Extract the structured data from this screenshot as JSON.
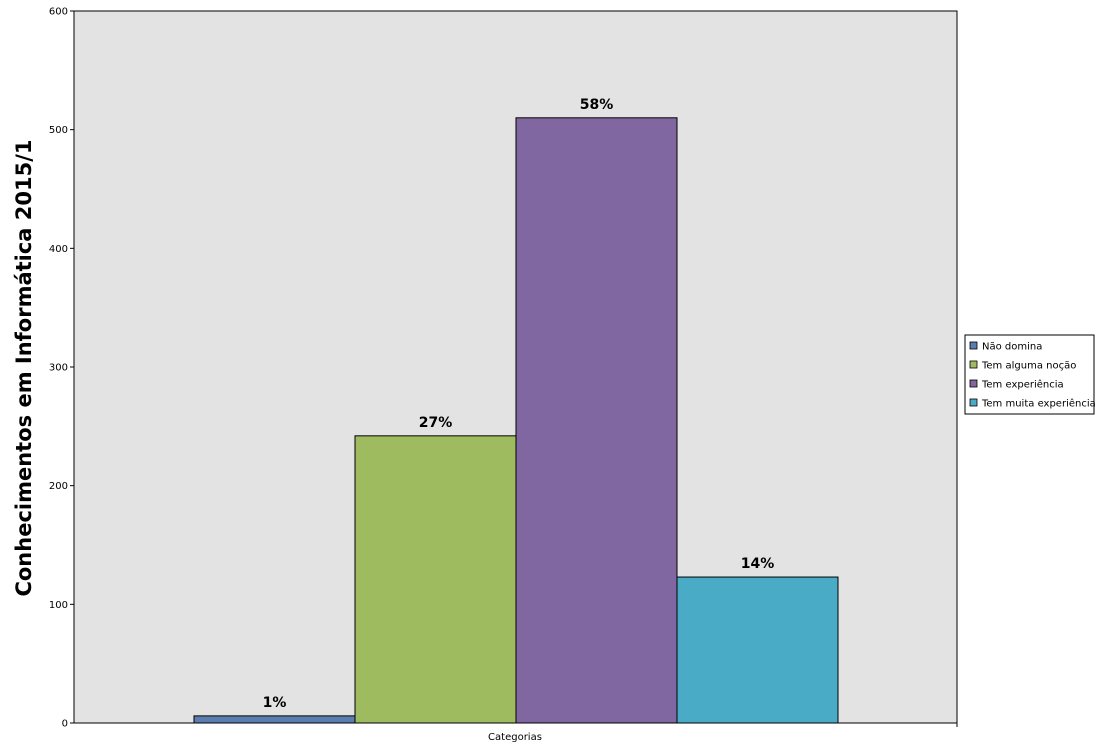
{
  "chart_data": {
    "type": "bar",
    "title": "",
    "xlabel": "Categorias",
    "ylabel": "Conhecimentos em Informática 2015/1",
    "ylim": [
      0,
      600
    ],
    "yticks": [
      0,
      100,
      200,
      300,
      400,
      500,
      600
    ],
    "grid": false,
    "legend_position": "right",
    "plot_background": "#E3E3E3",
    "categories": [
      "Categorias"
    ],
    "series": [
      {
        "name": "Não domina",
        "values": [
          6
        ],
        "label": "1%",
        "color": "#5B7DAF"
      },
      {
        "name": "Tem alguma noção",
        "values": [
          242
        ],
        "label": "27%",
        "color": "#9EBB60"
      },
      {
        "name": "Tem experiência",
        "values": [
          510
        ],
        "label": "58%",
        "color": "#8067A1"
      },
      {
        "name": "Tem muita experiência",
        "values": [
          123
        ],
        "label": "14%",
        "color": "#4AABC6"
      }
    ]
  }
}
